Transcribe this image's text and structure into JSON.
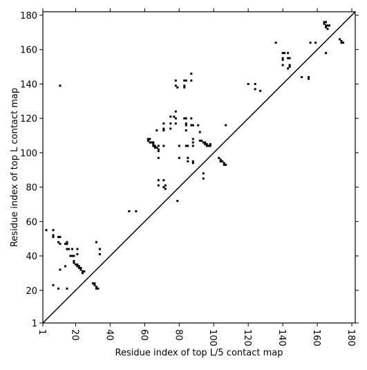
{
  "chart_data": {
    "type": "scatter",
    "xlabel": "Residue index of top L/5 contact map",
    "ylabel": "Residue index of top L contact map",
    "xlim": [
      1,
      182
    ],
    "ylim": [
      1,
      182
    ],
    "xticks": [
      1,
      20,
      40,
      60,
      80,
      100,
      120,
      140,
      160,
      180
    ],
    "yticks": [
      1,
      20,
      40,
      60,
      80,
      100,
      120,
      140,
      160,
      180
    ],
    "color": "#000000",
    "x": [
      3,
      7,
      7,
      7,
      10,
      11,
      10,
      11,
      15,
      14,
      15,
      16,
      18,
      21,
      15,
      17,
      18,
      19,
      21,
      19,
      19,
      20,
      21,
      21,
      22,
      22,
      23,
      23,
      24,
      24,
      25,
      14,
      11,
      34,
      34,
      32,
      7,
      10,
      15,
      30,
      31,
      31,
      32,
      32,
      33,
      51,
      55,
      11,
      62,
      63,
      62,
      63,
      64,
      65,
      65,
      66,
      67,
      68,
      68,
      66,
      68,
      65,
      71,
      71,
      71,
      71,
      75,
      75,
      75,
      77,
      78,
      78,
      78,
      78,
      78,
      79,
      83,
      84,
      83,
      83,
      87,
      87,
      83,
      84,
      87,
      84,
      84,
      87,
      88,
      91,
      84,
      92,
      80,
      84,
      85,
      88,
      88,
      88,
      92,
      93,
      94,
      95,
      95,
      96,
      97,
      98,
      98,
      96,
      107,
      80,
      85,
      85,
      88,
      88,
      94,
      94,
      68,
      68,
      68,
      71,
      71,
      72,
      72,
      79,
      103,
      104,
      104,
      105,
      106,
      106,
      107,
      67,
      120,
      124,
      124,
      127,
      136,
      140,
      141,
      143,
      140,
      140,
      143,
      144,
      140,
      144,
      144,
      143,
      151,
      155,
      155,
      156,
      159,
      164,
      165,
      164,
      165,
      166,
      167,
      165,
      166,
      165,
      173,
      174,
      175,
      174
    ],
    "y": [
      55,
      55,
      52,
      51,
      51,
      51,
      48,
      47,
      48,
      47,
      47,
      44,
      44,
      44,
      44,
      40,
      40,
      40,
      41,
      37,
      36,
      35,
      35,
      34,
      34,
      33,
      33,
      32,
      31,
      30,
      31,
      34,
      32,
      44,
      41,
      48,
      23,
      21,
      21,
      24,
      24,
      23,
      22,
      21,
      21,
      66,
      66,
      139,
      108,
      108,
      107,
      106,
      106,
      106,
      105,
      104,
      103,
      104,
      102,
      103,
      101,
      104,
      104,
      113,
      114,
      117,
      114,
      117,
      121,
      121,
      124,
      120,
      117,
      142,
      139,
      138,
      142,
      142,
      139,
      138,
      142,
      146,
      120,
      120,
      120,
      117,
      116,
      116,
      116,
      116,
      113,
      112,
      104,
      104,
      104,
      104,
      106,
      108,
      107,
      107,
      106,
      106,
      105,
      104,
      104,
      105,
      104,
      105,
      116,
      97,
      97,
      95,
      95,
      94,
      88,
      85,
      97,
      84,
      81,
      84,
      80,
      79,
      81,
      72,
      97,
      96,
      95,
      95,
      94,
      93,
      93,
      113,
      140,
      140,
      137,
      136,
      164,
      158,
      158,
      158,
      155,
      154,
      155,
      155,
      151,
      151,
      150,
      149,
      144,
      144,
      143,
      164,
      164,
      176,
      176,
      175,
      174,
      174,
      174,
      173,
      172,
      158,
      166,
      165,
      164,
      164
    ]
  }
}
